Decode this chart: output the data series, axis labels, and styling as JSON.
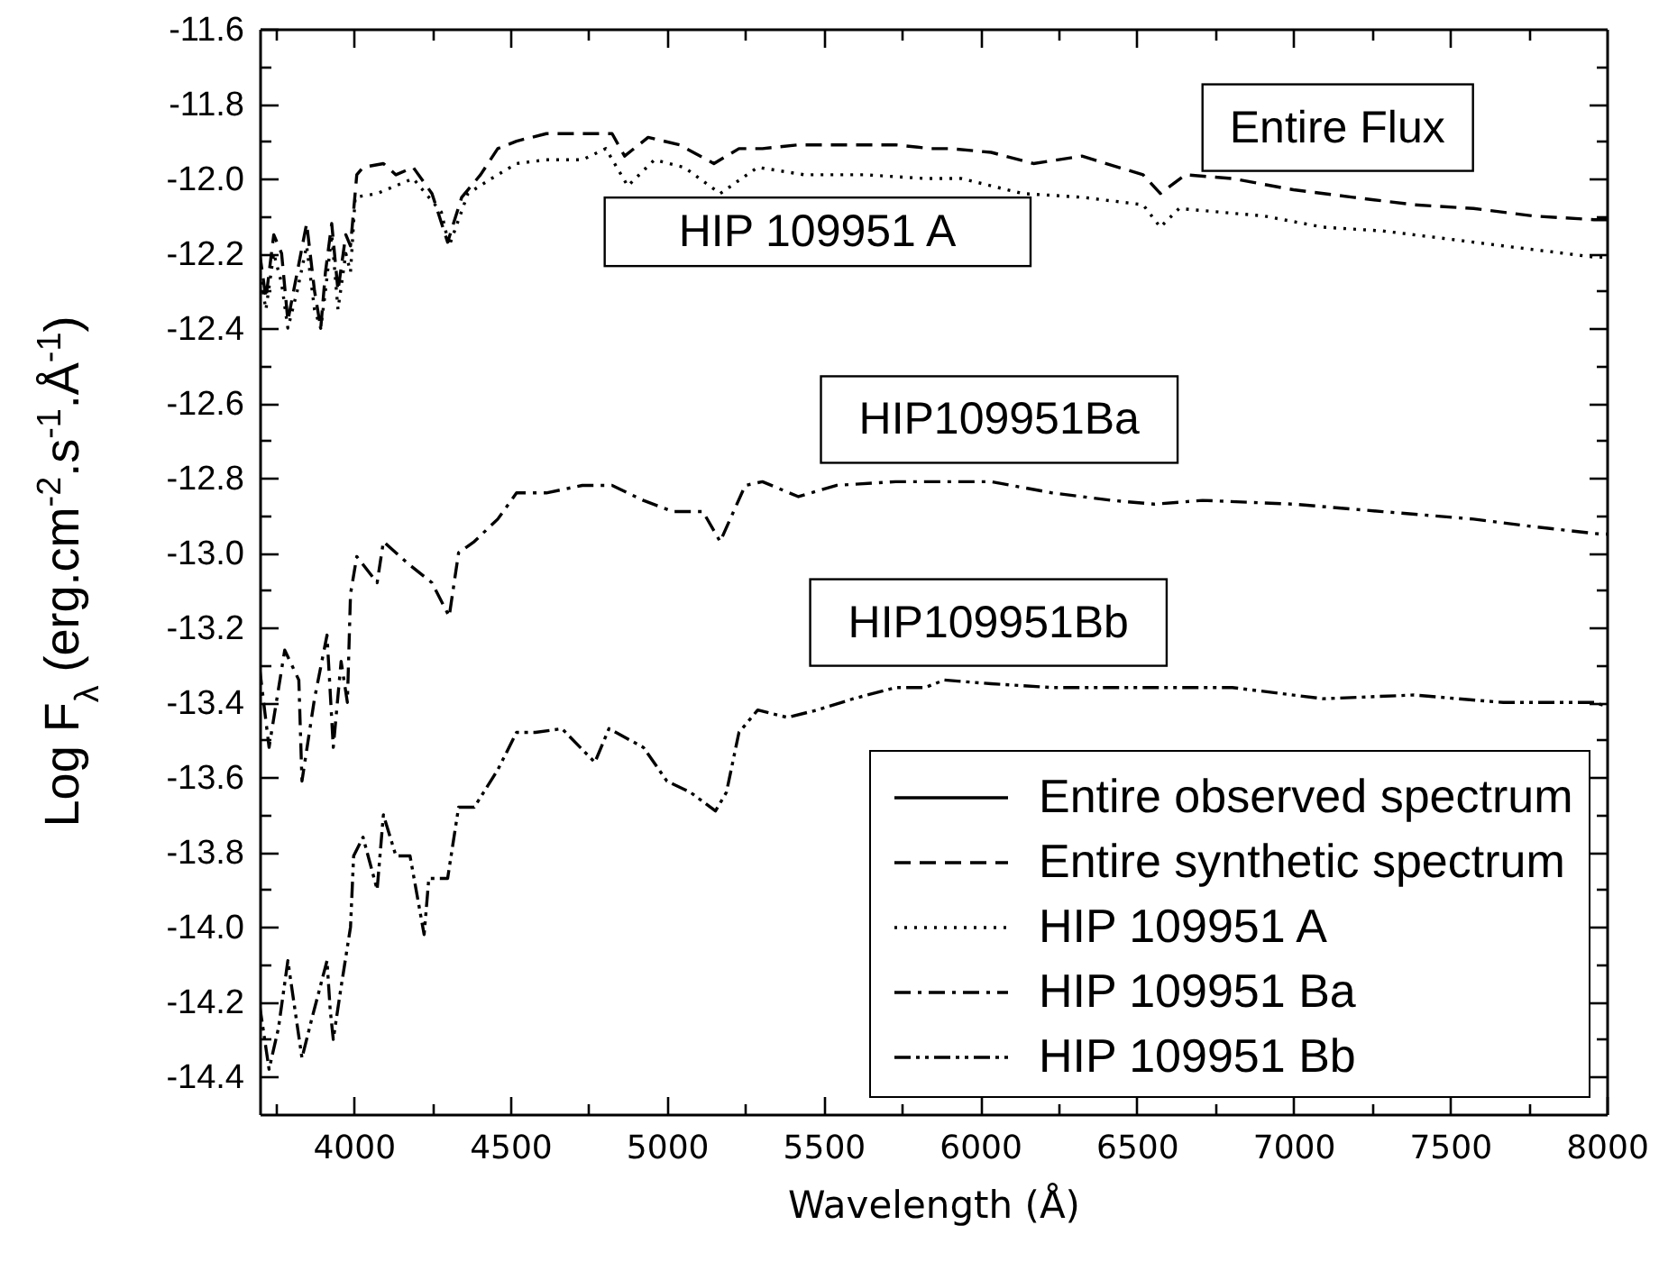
{
  "chart_data": {
    "type": "line",
    "xlabel": "Wavelength (Å)",
    "ylabel": "Log F$_{λ}$ (erg.cm$^{-2}$.s$^{-1}$.Å$^{-1}$)",
    "xlim": [
      3700,
      8000
    ],
    "ylim": [
      -14.5,
      -11.6
    ],
    "xticks": [
      {
        "value": 3750,
        "label": null
      },
      4000,
      {
        "value": 4250,
        "label": null
      },
      4500,
      {
        "value": 4750,
        "label": null
      },
      5000,
      {
        "value": 5250,
        "label": null
      },
      5500,
      {
        "value": 5750,
        "label": null
      },
      6000,
      {
        "value": 6250,
        "label": null
      },
      6500,
      {
        "value": 6750,
        "label": null
      },
      7000,
      {
        "value": 7250,
        "label": null
      },
      7500,
      {
        "value": 7750,
        "label": null
      },
      8000
    ],
    "yticks": [
      -11.6,
      {
        "value": -11.7,
        "label": null
      },
      -11.8,
      {
        "value": -11.9,
        "label": null
      },
      {
        "value": -12,
        "label": "-12.0"
      },
      {
        "value": -12.1,
        "label": null
      },
      -12.2,
      {
        "value": -12.3,
        "label": null
      },
      -12.4,
      {
        "value": -12.5,
        "label": null
      },
      -12.6,
      {
        "value": -12.7,
        "label": null
      },
      -12.8,
      {
        "value": -12.9,
        "label": null
      },
      {
        "value": -13,
        "label": "-13.0"
      },
      {
        "value": -13.1,
        "label": null
      },
      -13.2,
      {
        "value": -13.3,
        "label": null
      },
      -13.4,
      {
        "value": -13.5,
        "label": null
      },
      -13.6,
      {
        "value": -13.7,
        "label": null
      },
      -13.8,
      {
        "value": -13.9,
        "label": null
      },
      {
        "value": -14,
        "label": "-14.0"
      },
      {
        "value": -14.1,
        "label": null
      },
      -14.2,
      {
        "value": -14.3,
        "label": null
      },
      -14.4
    ],
    "legend": "bottom right",
    "annotations": [
      "Entire Flux",
      "HIP 109951 A",
      "HIP109951Ba",
      "HIP109951Bb"
    ],
    "series": [
      {
        "name": "Entire observed spectrum",
        "color": "#000000",
        "line_style": "solid"
      },
      {
        "name": "Entire synthetic spectrum",
        "color": "#000000",
        "line_style": "dashed",
        "x": [
          3700,
          3720,
          3745,
          3770,
          3790,
          3820,
          3850,
          3875,
          3895,
          3910,
          3930,
          3950,
          3975,
          3990,
          4010,
          4030,
          4095,
          4135,
          4190,
          4250,
          4300,
          4345,
          4405,
          4460,
          4520,
          4615,
          4730,
          4825,
          4865,
          4940,
          5040,
          5150,
          5230,
          5305,
          5420,
          5540,
          5730,
          5845,
          5905,
          6035,
          6170,
          6325,
          6520,
          6575,
          6655,
          6805,
          7000,
          7190,
          7385,
          7575,
          7765,
          7960,
          8000
        ],
        "values": [
          -12.2,
          -12.32,
          -12.15,
          -12.2,
          -12.38,
          -12.25,
          -12.12,
          -12.3,
          -12.4,
          -12.25,
          -12.12,
          -12.3,
          -12.15,
          -12.18,
          -11.99,
          -11.97,
          -11.96,
          -11.99,
          -11.97,
          -12.04,
          -12.17,
          -12.05,
          -11.99,
          -11.92,
          -11.9,
          -11.88,
          -11.88,
          -11.88,
          -11.94,
          -11.89,
          -11.91,
          -11.96,
          -11.92,
          -11.92,
          -11.91,
          -11.91,
          -11.91,
          -11.92,
          -11.92,
          -11.93,
          -11.96,
          -11.94,
          -11.99,
          -12.04,
          -11.99,
          -12.0,
          -12.03,
          -12.05,
          -12.07,
          -12.08,
          -12.1,
          -12.11,
          -12.11
        ]
      },
      {
        "name": "HIP 109951 A",
        "color": "#000000",
        "line_style": "dotted",
        "x": [
          3700,
          3720,
          3745,
          3770,
          3790,
          3820,
          3850,
          3875,
          3895,
          3910,
          3930,
          3950,
          3975,
          3990,
          4005,
          4075,
          4190,
          4280,
          4305,
          4365,
          4440,
          4520,
          4615,
          4730,
          4805,
          4875,
          4960,
          5055,
          5170,
          5290,
          5440,
          5635,
          5825,
          5940,
          6135,
          6325,
          6520,
          6575,
          6635,
          6905,
          7095,
          7285,
          7480,
          7670,
          7865,
          7960,
          8000
        ],
        "values": [
          -12.25,
          -12.35,
          -12.2,
          -12.28,
          -12.4,
          -12.3,
          -12.18,
          -12.35,
          -12.4,
          -12.3,
          -12.15,
          -12.35,
          -12.2,
          -12.25,
          -12.05,
          -12.04,
          -12.0,
          -12.09,
          -12.18,
          -12.04,
          -12.0,
          -11.96,
          -11.95,
          -11.95,
          -11.92,
          -12.02,
          -11.95,
          -11.97,
          -12.04,
          -11.97,
          -11.99,
          -11.99,
          -12.0,
          -12.0,
          -12.04,
          -12.05,
          -12.07,
          -12.13,
          -12.08,
          -12.1,
          -12.13,
          -12.14,
          -12.16,
          -12.18,
          -12.2,
          -12.21,
          -12.21
        ]
      },
      {
        "name": "HIP 109951 Ba",
        "color": "#000000",
        "line_style": "dashdot",
        "x": [
          3700,
          3730,
          3780,
          3825,
          3835,
          3875,
          3915,
          3935,
          3960,
          3980,
          3990,
          4010,
          4075,
          4095,
          4175,
          4250,
          4305,
          4335,
          4385,
          4460,
          4520,
          4615,
          4730,
          4825,
          4925,
          5020,
          5115,
          5170,
          5250,
          5305,
          5420,
          5540,
          5730,
          5845,
          5905,
          6035,
          6230,
          6420,
          6555,
          6710,
          7000,
          7285,
          7575,
          7765,
          7980,
          8000
        ],
        "values": [
          -13.31,
          -13.52,
          -13.26,
          -13.34,
          -13.61,
          -13.39,
          -13.22,
          -13.52,
          -13.29,
          -13.4,
          -13.11,
          -13.01,
          -13.08,
          -12.97,
          -13.03,
          -13.08,
          -13.17,
          -13.0,
          -12.97,
          -12.91,
          -12.84,
          -12.84,
          -12.82,
          -12.82,
          -12.86,
          -12.89,
          -12.89,
          -12.97,
          -12.82,
          -12.81,
          -12.85,
          -12.82,
          -12.81,
          -12.81,
          -12.81,
          -12.81,
          -12.84,
          -12.86,
          -12.87,
          -12.86,
          -12.87,
          -12.89,
          -12.91,
          -12.93,
          -12.95,
          -12.95
        ]
      },
      {
        "name": "HIP 109951 Bb",
        "color": "#000000",
        "line_style": "dashdotdot",
        "x": [
          3700,
          3730,
          3760,
          3790,
          3835,
          3865,
          3915,
          3925,
          3935,
          3960,
          3990,
          4000,
          4030,
          4075,
          4095,
          4135,
          4180,
          4225,
          4240,
          4300,
          4335,
          4385,
          4460,
          4520,
          4580,
          4665,
          4770,
          4815,
          4925,
          5000,
          5075,
          5155,
          5190,
          5230,
          5290,
          5385,
          5480,
          5595,
          5730,
          5825,
          5885,
          6035,
          6230,
          6520,
          6805,
          7095,
          7385,
          7670,
          7960,
          8000
        ],
        "values": [
          -14.21,
          -14.38,
          -14.27,
          -14.09,
          -14.35,
          -14.25,
          -14.09,
          -14.22,
          -14.3,
          -14.16,
          -14.0,
          -13.81,
          -13.76,
          -13.9,
          -13.7,
          -13.81,
          -13.81,
          -14.02,
          -13.87,
          -13.87,
          -13.68,
          -13.68,
          -13.58,
          -13.48,
          -13.48,
          -13.47,
          -13.56,
          -13.47,
          -13.52,
          -13.61,
          -13.64,
          -13.69,
          -13.64,
          -13.48,
          -13.42,
          -13.44,
          -13.42,
          -13.39,
          -13.36,
          -13.36,
          -13.34,
          -13.35,
          -13.36,
          -13.36,
          -13.36,
          -13.39,
          -13.38,
          -13.4,
          -13.4,
          -13.41
        ]
      }
    ]
  }
}
